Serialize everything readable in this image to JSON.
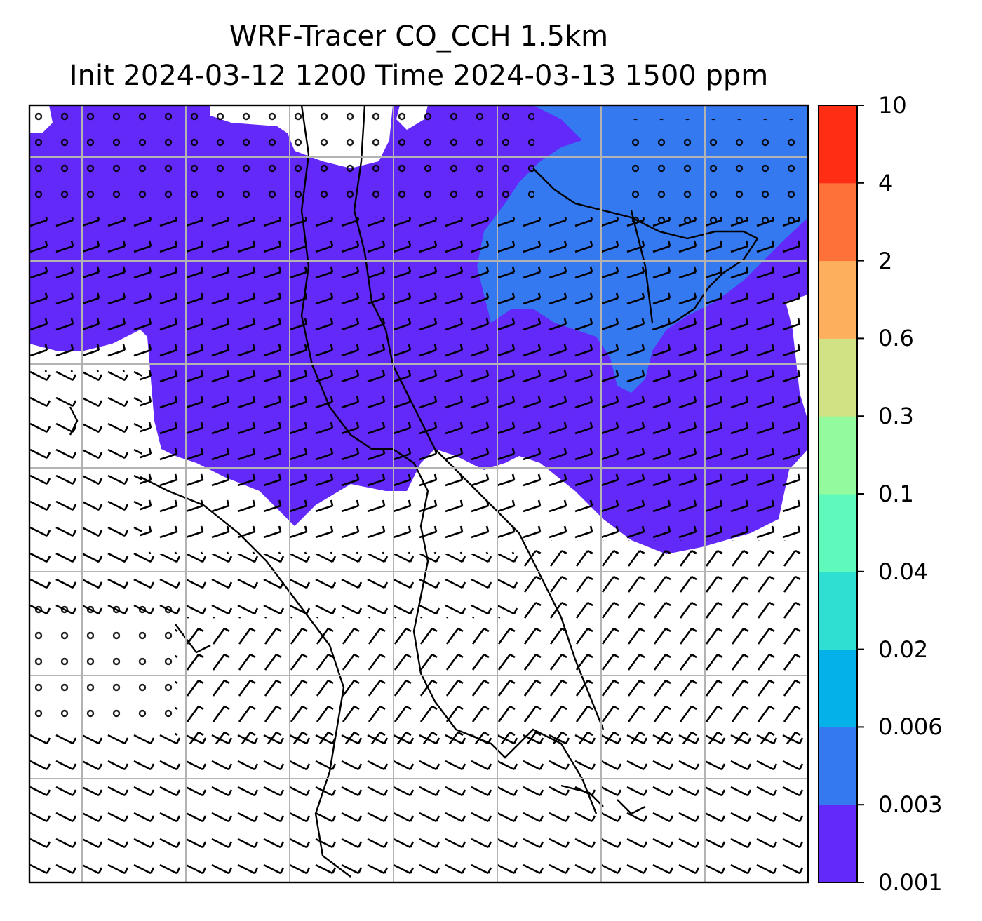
{
  "title": {
    "line1": "WRF-Tracer CO_CCH 1.5km",
    "line2": "Init 2024-03-12 1200 Time 2024-03-13 1500 ppm"
  },
  "colorbar": {
    "levels": [
      "0.001",
      "0.003",
      "0.006",
      "0.02",
      "0.04",
      "0.1",
      "0.3",
      "0.6",
      "2",
      "4",
      "10"
    ],
    "colors": [
      "#6229f8",
      "#3479f0",
      "#04b1e8",
      "#2fdfd2",
      "#5ff9bb",
      "#93fb9e",
      "#d0e283",
      "#feaf5e",
      "#fe7138",
      "#ff2d13"
    ]
  },
  "map": {
    "field_colors": {
      "level_1": "#6229f8",
      "level_2": "#3479f0"
    },
    "grid": "on",
    "wind_barbs": "on",
    "coastlines": "on"
  }
}
